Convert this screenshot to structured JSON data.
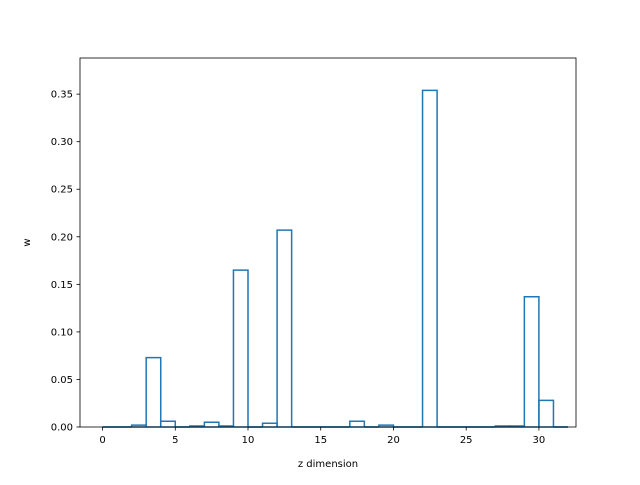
{
  "chart_data": {
    "type": "bar",
    "style": "step-histogram",
    "title": "",
    "xlabel": "z dimension",
    "ylabel": "w",
    "xlim": [
      -1.55,
      32.55
    ],
    "ylim": [
      0.0,
      0.388
    ],
    "xticks": [
      0,
      5,
      10,
      15,
      20,
      25,
      30
    ],
    "xtick_labels": [
      "0",
      "5",
      "10",
      "15",
      "20",
      "25",
      "30"
    ],
    "yticks": [
      0.0,
      0.05,
      0.1,
      0.15,
      0.2,
      0.25,
      0.3,
      0.35
    ],
    "ytick_labels": [
      "0.00",
      "0.05",
      "0.10",
      "0.15",
      "0.20",
      "0.25",
      "0.30",
      "0.35"
    ],
    "grid": false,
    "legend": "none",
    "colors": {
      "line": "#1f77b4",
      "axes": "#000000",
      "background": "#ffffff"
    },
    "bins": [
      {
        "x0": 0.0,
        "x1": 1.0,
        "value": 0.0
      },
      {
        "x0": 1.0,
        "x1": 2.0,
        "value": 0.0
      },
      {
        "x0": 2.0,
        "x1": 3.0,
        "value": 0.002
      },
      {
        "x0": 3.0,
        "x1": 4.0,
        "value": 0.073
      },
      {
        "x0": 4.0,
        "x1": 5.0,
        "value": 0.006
      },
      {
        "x0": 5.0,
        "x1": 6.0,
        "value": 0.0
      },
      {
        "x0": 6.0,
        "x1": 7.0,
        "value": 0.001
      },
      {
        "x0": 7.0,
        "x1": 8.0,
        "value": 0.005
      },
      {
        "x0": 8.0,
        "x1": 9.0,
        "value": 0.001
      },
      {
        "x0": 9.0,
        "x1": 10.0,
        "value": 0.165
      },
      {
        "x0": 10.0,
        "x1": 11.0,
        "value": 0.0
      },
      {
        "x0": 11.0,
        "x1": 12.0,
        "value": 0.004
      },
      {
        "x0": 12.0,
        "x1": 13.0,
        "value": 0.207
      },
      {
        "x0": 13.0,
        "x1": 14.0,
        "value": 0.0
      },
      {
        "x0": 14.0,
        "x1": 15.0,
        "value": 0.0
      },
      {
        "x0": 15.0,
        "x1": 16.0,
        "value": 0.0
      },
      {
        "x0": 16.0,
        "x1": 17.0,
        "value": 0.0
      },
      {
        "x0": 17.0,
        "x1": 18.0,
        "value": 0.006
      },
      {
        "x0": 18.0,
        "x1": 19.0,
        "value": 0.0
      },
      {
        "x0": 19.0,
        "x1": 20.0,
        "value": 0.002
      },
      {
        "x0": 20.0,
        "x1": 21.0,
        "value": 0.0
      },
      {
        "x0": 21.0,
        "x1": 22.0,
        "value": 0.0
      },
      {
        "x0": 22.0,
        "x1": 23.0,
        "value": 0.354
      },
      {
        "x0": 23.0,
        "x1": 24.0,
        "value": 0.0
      },
      {
        "x0": 24.0,
        "x1": 25.0,
        "value": 0.0
      },
      {
        "x0": 25.0,
        "x1": 26.0,
        "value": 0.0
      },
      {
        "x0": 26.0,
        "x1": 27.0,
        "value": 0.0
      },
      {
        "x0": 27.0,
        "x1": 28.0,
        "value": 0.001
      },
      {
        "x0": 28.0,
        "x1": 29.0,
        "value": 0.001
      },
      {
        "x0": 29.0,
        "x1": 30.0,
        "value": 0.137
      },
      {
        "x0": 30.0,
        "x1": 31.0,
        "value": 0.028
      },
      {
        "x0": 31.0,
        "x1": 32.0,
        "value": 0.0
      }
    ]
  }
}
